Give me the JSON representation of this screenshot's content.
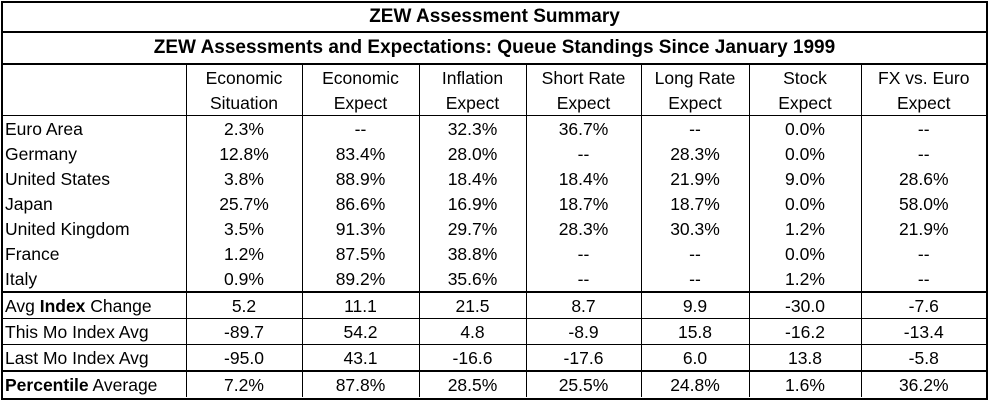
{
  "title": "ZEW Assessment Summary",
  "subtitle": "ZEW Assessments and Expectations: Queue Standings Since January 1999",
  "columns": [
    {
      "line1": "Economic",
      "line2": "Situation"
    },
    {
      "line1": "Economic",
      "line2": "Expect"
    },
    {
      "line1": "Inflation",
      "line2": "Expect"
    },
    {
      "line1": "Short Rate",
      "line2": "Expect"
    },
    {
      "line1": "Long Rate",
      "line2": "Expect"
    },
    {
      "line1": "Stock",
      "line2": "Expect"
    },
    {
      "line1": "FX vs. Euro",
      "line2": "Expect"
    }
  ],
  "rows": [
    {
      "label": "Euro Area",
      "values": [
        "2.3%",
        "--",
        "32.3%",
        "36.7%",
        "--",
        "0.0%",
        "--"
      ]
    },
    {
      "label": "Germany",
      "values": [
        "12.8%",
        "83.4%",
        "28.0%",
        "--",
        "28.3%",
        "0.0%",
        "--"
      ]
    },
    {
      "label": "United States",
      "values": [
        "3.8%",
        "88.9%",
        "18.4%",
        "18.4%",
        "21.9%",
        "9.0%",
        "28.6%"
      ]
    },
    {
      "label": "Japan",
      "values": [
        "25.7%",
        "86.6%",
        "16.9%",
        "18.7%",
        "18.7%",
        "0.0%",
        "58.0%"
      ]
    },
    {
      "label": "United Kingdom",
      "values": [
        "3.5%",
        "91.3%",
        "29.7%",
        "28.3%",
        "30.3%",
        "1.2%",
        "21.9%"
      ]
    },
    {
      "label": "France",
      "values": [
        "1.2%",
        "87.5%",
        "38.8%",
        "--",
        "--",
        "0.0%",
        "--"
      ]
    },
    {
      "label": "Italy",
      "values": [
        "0.9%",
        "89.2%",
        "35.6%",
        "--",
        "--",
        "1.2%",
        "--"
      ]
    }
  ],
  "summary": {
    "avg_change": {
      "prefix": "Avg ",
      "bold": "Index",
      "suffix": " Change",
      "values": [
        "5.2",
        "11.1",
        "21.5",
        "8.7",
        "9.9",
        "-30.0",
        "-7.6"
      ]
    },
    "this_mo": {
      "label": "This Mo Index Avg",
      "values": [
        "-89.7",
        "54.2",
        "4.8",
        "-8.9",
        "15.8",
        "-16.2",
        "-13.4"
      ]
    },
    "last_mo": {
      "label": "Last Mo Index Avg",
      "values": [
        "-95.0",
        "43.1",
        "-16.6",
        "-17.6",
        "6.0",
        "13.8",
        "-5.8"
      ]
    },
    "percentile": {
      "bold": "Percentile",
      "suffix": " Average",
      "values": [
        "7.2%",
        "87.8%",
        "28.5%",
        "25.5%",
        "24.8%",
        "1.6%",
        "36.2%"
      ]
    }
  }
}
